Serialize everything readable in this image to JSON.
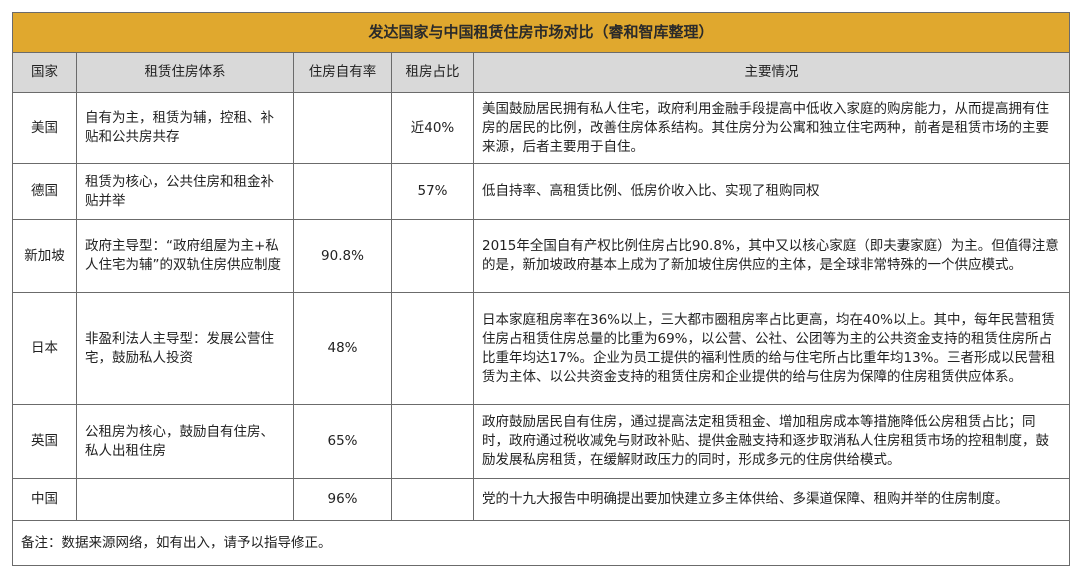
{
  "title": "发达国家与中国租赁住房市场对比（睿和智库整理）",
  "headers": [
    "国家",
    "租赁住房体系",
    "住房自有率",
    "租房占比",
    "主要情况"
  ],
  "rows": [
    {
      "country": "美国",
      "system": "自有为主，租赁为辅，控租、补贴和公共房共存",
      "own_rate": "",
      "rent_share": "近40%",
      "detail": "美国鼓励居民拥有私人住宅，政府利用金融手段提高中低收入家庭的购房能力，从而提高拥有住房的居民的比例，改善住房体系结构。其住房分为公寓和独立住宅两种，前者是租赁市场的主要来源，后者主要用于自住。"
    },
    {
      "country": "德国",
      "system": "租赁为核心，公共住房和租金补贴并举",
      "own_rate": "",
      "rent_share": "57%",
      "detail": "低自持率、高租赁比例、低房价收入比、实现了租购同权"
    },
    {
      "country": "新加坡",
      "system": "政府主导型：“政府组屋为主+私人住宅为辅”的双轨住房供应制度",
      "own_rate": "90.8%",
      "rent_share": "",
      "detail": "2015年全国自有产权比例住房占比90.8%，其中又以核心家庭（即夫妻家庭）为主。但值得注意的是，新加坡政府基本上成为了新加坡住房供应的主体，是全球非常特殊的一个供应模式。"
    },
    {
      "country": "日本",
      "system": "非盈利法人主导型：发展公营住宅，鼓励私人投资",
      "own_rate": "48%",
      "rent_share": "",
      "detail": "日本家庭租房率在36%以上，三大都市圈租房率占比更高，均在40%以上。其中，每年民营租赁住房占租赁住房总量的比重为69%，以公营、公社、公团等为主的公共资金支持的租赁住房所占比重年均达17%。企业为员工提供的福利性质的给与住宅所占比重年均13%。三者形成以民营租赁为主体、以公共资金支持的租赁住房和企业提供的给与住房为保障的住房租赁供应体系。"
    },
    {
      "country": "英国",
      "system": "公租房为核心，鼓励自有住房、私人出租住房",
      "own_rate": "65%",
      "rent_share": "",
      "detail": "政府鼓励居民自有住房，通过提高法定租赁租金、增加租房成本等措施降低公房租赁占比；同时，政府通过税收减免与财政补贴、提供金融支持和逐步取消私人住房租赁市场的控租制度，鼓励发展私房租赁，在缓解财政压力的同时，形成多元的住房供给模式。"
    },
    {
      "country": "中国",
      "system": "",
      "own_rate": "96%",
      "rent_share": "",
      "detail": "党的十九大报告中明确提出要加快建立多主体供给、多渠道保障、租购并举的住房制度。"
    }
  ],
  "note": "备注：数据来源网络，如有出入，请予以指导修正。",
  "colors": {
    "title_bg": "#e0a82e",
    "header_bg": "#d9d9d9",
    "border": "#6b6b6b"
  }
}
